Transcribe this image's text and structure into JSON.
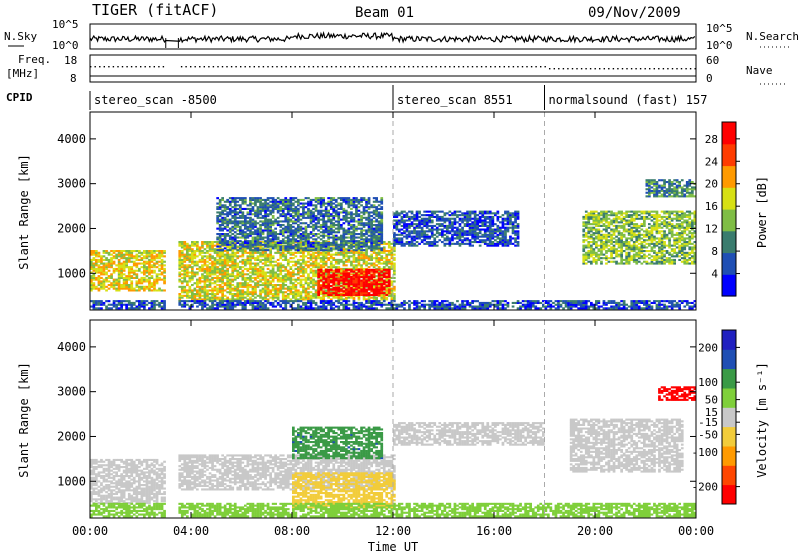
{
  "header": {
    "station": "TIGER (fitACF)",
    "beam": "Beam 01",
    "date": "09/Nov/2009"
  },
  "sky_panel": {
    "left_label": "N.Sky",
    "right_label": "N.Search",
    "left_ticks": [
      "10^5",
      "10^0"
    ],
    "right_ticks": [
      "10^5",
      "10^0"
    ]
  },
  "freq_panel": {
    "left_label_1": "Freq.",
    "left_label_2": "[MHz]",
    "right_label": "Nave",
    "left_ticks": [
      "18",
      "8"
    ],
    "right_ticks": [
      "60",
      "0"
    ]
  },
  "cpid": {
    "label": "CPID",
    "segments": [
      {
        "text": "stereo_scan -8500",
        "start": 0,
        "end": 12
      },
      {
        "text": "stereo_scan 8551",
        "start": 12,
        "end": 18
      },
      {
        "text": "normalsound (fast) 157",
        "start": 18,
        "end": 24
      }
    ]
  },
  "x_axis": {
    "label": "Time UT",
    "ticks": [
      "00:00",
      "04:00",
      "08:00",
      "12:00",
      "16:00",
      "20:00",
      "00:00"
    ],
    "range": [
      0,
      24
    ]
  },
  "data_gaps": [
    [
      3,
      3.5
    ]
  ],
  "chart_data": [
    {
      "type": "heatmap",
      "name": "power",
      "ylabel": "Slant Range [km]",
      "y_ticks": [
        1000,
        2000,
        3000,
        4000
      ],
      "ylim": [
        180,
        4600
      ],
      "colorbar_label": "Power [dB]",
      "colorbar_ticks": [
        4,
        8,
        12,
        16,
        20,
        24,
        28
      ],
      "colorbar_range": [
        0,
        31
      ],
      "colorscale": [
        "#0000ff",
        "#1f4fb4",
        "#3a7c6e",
        "#7fbd45",
        "#d7e014",
        "#ff9a00",
        "#ff3c00",
        "#ff0000"
      ],
      "regions": [
        {
          "t": [
            0,
            3
          ],
          "r": [
            600,
            1500
          ],
          "val": 18
        },
        {
          "t": [
            3.5,
            12
          ],
          "r": [
            400,
            1700
          ],
          "val": 17
        },
        {
          "t": [
            5,
            11.5
          ],
          "r": [
            1500,
            2700
          ],
          "val": 8
        },
        {
          "t": [
            9,
            11.8
          ],
          "r": [
            500,
            1100
          ],
          "val": 30
        },
        {
          "t": [
            12,
            17
          ],
          "r": [
            1600,
            2400
          ],
          "val": 6
        },
        {
          "t": [
            19.5,
            24
          ],
          "r": [
            1200,
            2400
          ],
          "val": 14
        },
        {
          "t": [
            22,
            24
          ],
          "r": [
            2700,
            3100
          ],
          "val": 10
        },
        {
          "t": [
            0,
            24
          ],
          "r": [
            200,
            400
          ],
          "val": 6
        }
      ]
    },
    {
      "type": "heatmap",
      "name": "velocity",
      "ylabel": "Slant Range [km]",
      "y_ticks": [
        1000,
        2000,
        3000,
        4000
      ],
      "ylim": [
        180,
        4600
      ],
      "colorbar_label": "Velocity [m s⁻¹]",
      "colorbar_ticks": [
        200,
        100,
        50,
        15,
        -15,
        -50,
        -100,
        -200
      ],
      "colorbar_range": [
        -250,
        250
      ],
      "colorscale": [
        "#ff0000",
        "#ff4600",
        "#ff9a00",
        "#f2cc3a",
        "#c8c8c8",
        "#7fcf3a",
        "#3a9a46",
        "#1f4fb4",
        "#2020c0"
      ],
      "regions": [
        {
          "t": [
            0,
            3
          ],
          "r": [
            500,
            1500
          ],
          "val": 0
        },
        {
          "t": [
            3.5,
            12
          ],
          "r": [
            800,
            1600
          ],
          "val": 0
        },
        {
          "t": [
            8,
            12
          ],
          "r": [
            400,
            1200
          ],
          "val": -60
        },
        {
          "t": [
            8,
            11.5
          ],
          "r": [
            1500,
            2200
          ],
          "val": 120
        },
        {
          "t": [
            12,
            18
          ],
          "r": [
            1800,
            2300
          ],
          "val": 0
        },
        {
          "t": [
            19,
            23.5
          ],
          "r": [
            1200,
            2400
          ],
          "val": 0
        },
        {
          "t": [
            22.5,
            24
          ],
          "r": [
            2800,
            3100
          ],
          "val": -220
        },
        {
          "t": [
            0,
            24
          ],
          "r": [
            200,
            500
          ],
          "val": 60
        }
      ]
    }
  ]
}
